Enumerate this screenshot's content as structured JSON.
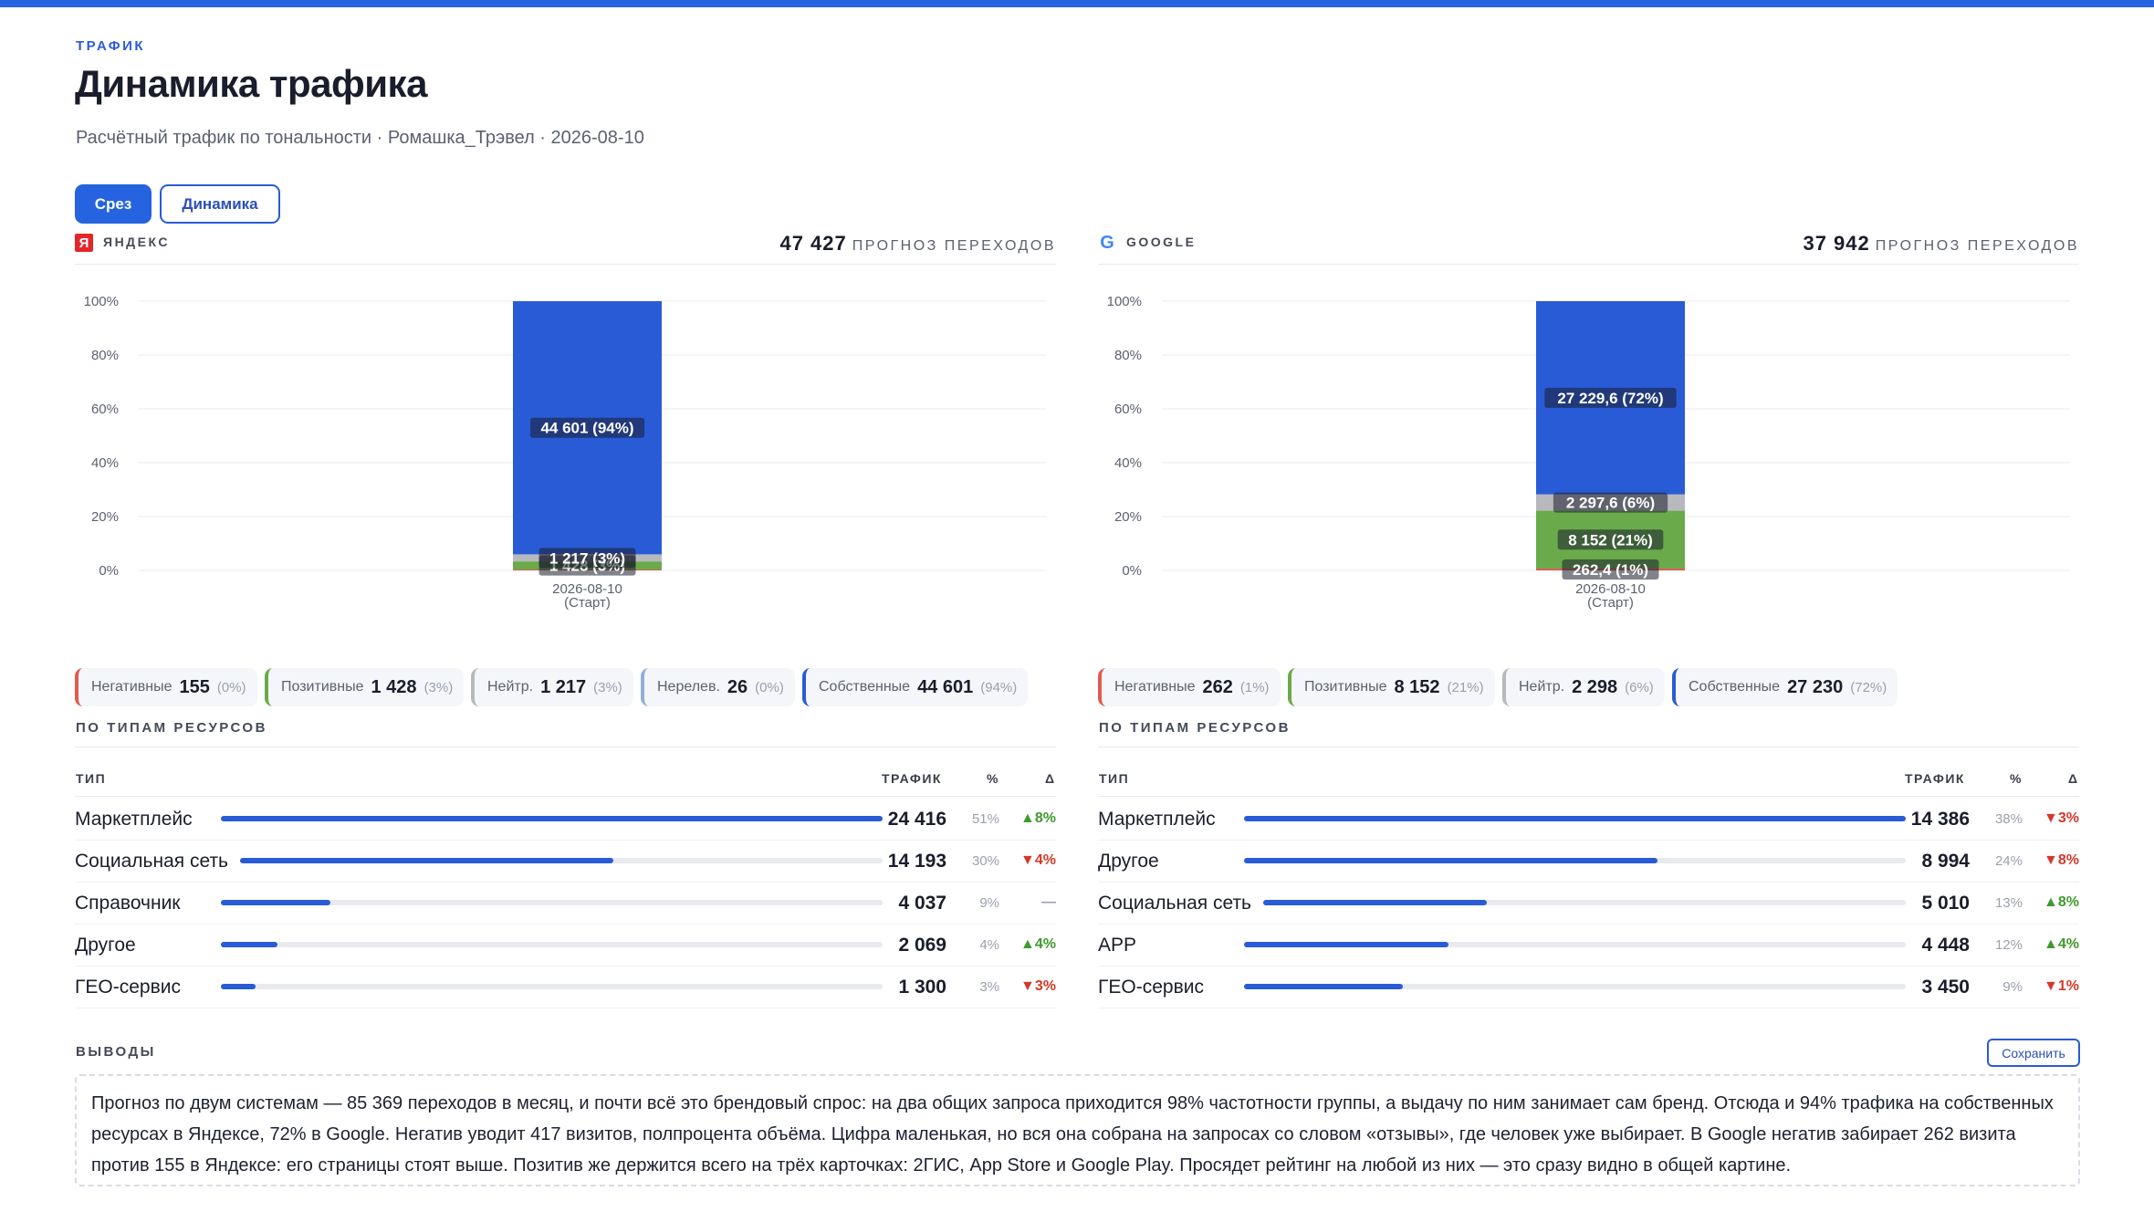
{
  "page": {
    "kicker": "ТРАФИК",
    "title": "Динамика трафика",
    "subtitle": "Расчётный трафик по тональности · Ромашка_Трэвел · 2026-08-10"
  },
  "tabs": {
    "active": "Срез",
    "inactive": "Динамика"
  },
  "colors": {
    "accent": "#2563e0",
    "own": "#2a5bd7",
    "positive": "#6aaa4a",
    "neutral": "#b7b9bd",
    "negative": "#e25b4f",
    "irrelevant": "#8fb0d4"
  },
  "yandex": {
    "logo_letter": "Я",
    "name": "ЯНДЕКС",
    "total": "47 427",
    "total_label": "ПРОГНОЗ ПЕРЕХОДОВ",
    "chips": [
      {
        "label": "Негативные",
        "value": "155",
        "pct": "(0%)",
        "color": "#e25b4f"
      },
      {
        "label": "Позитивные",
        "value": "1 428",
        "pct": "(3%)",
        "color": "#6aaa4a"
      },
      {
        "label": "Нейтр.",
        "value": "1 217",
        "pct": "(3%)",
        "color": "#b7b9bd"
      },
      {
        "label": "Нерелев.",
        "value": "26",
        "pct": "(0%)",
        "color": "#8fb0d4"
      },
      {
        "label": "Собственные",
        "value": "44 601",
        "pct": "(94%)",
        "color": "#2a5bd7"
      }
    ],
    "section": "ПО ТИПАМ РЕСУРСОВ",
    "table": {
      "headers": {
        "type": "ТИП",
        "traffic": "ТРАФИК",
        "pct": "%",
        "delta": "Δ"
      },
      "rows": [
        {
          "name": "Маркетплейс",
          "value": "24 416",
          "pct": "51%",
          "delta": "▲8%",
          "dir": "up",
          "share": 1.0
        },
        {
          "name": "Социальная сеть",
          "value": "14 193",
          "pct": "30%",
          "delta": "▼4%",
          "dir": "down",
          "share": 0.581
        },
        {
          "name": "Справочник",
          "value": "4 037",
          "pct": "9%",
          "delta": "—",
          "dir": "flat",
          "share": 0.165
        },
        {
          "name": "Другое",
          "value": "2 069",
          "pct": "4%",
          "delta": "▲4%",
          "dir": "up",
          "share": 0.085
        },
        {
          "name": "ГЕО-сервис",
          "value": "1 300",
          "pct": "3%",
          "delta": "▼3%",
          "dir": "down",
          "share": 0.053
        }
      ]
    }
  },
  "google": {
    "logo_letter": "G",
    "name": "GOOGLE",
    "total": "37 942",
    "total_label": "ПРОГНОЗ ПЕРЕХОДОВ",
    "chips": [
      {
        "label": "Негативные",
        "value": "262",
        "pct": "(1%)",
        "color": "#e25b4f"
      },
      {
        "label": "Позитивные",
        "value": "8 152",
        "pct": "(21%)",
        "color": "#6aaa4a"
      },
      {
        "label": "Нейтр.",
        "value": "2 298",
        "pct": "(6%)",
        "color": "#b7b9bd"
      },
      {
        "label": "Собственные",
        "value": "27 230",
        "pct": "(72%)",
        "color": "#2a5bd7"
      }
    ],
    "section": "ПО ТИПАМ РЕСУРСОВ",
    "table": {
      "headers": {
        "type": "ТИП",
        "traffic": "ТРАФИК",
        "pct": "%",
        "delta": "Δ"
      },
      "rows": [
        {
          "name": "Маркетплейс",
          "value": "14 386",
          "pct": "38%",
          "delta": "▼3%",
          "dir": "down",
          "share": 1.0
        },
        {
          "name": "Другое",
          "value": "8 994",
          "pct": "24%",
          "delta": "▼8%",
          "dir": "down",
          "share": 0.625
        },
        {
          "name": "Социальная сеть",
          "value": "5 010",
          "pct": "13%",
          "delta": "▲8%",
          "dir": "up",
          "share": 0.348
        },
        {
          "name": "APP",
          "value": "4 448",
          "pct": "12%",
          "delta": "▲4%",
          "dir": "up",
          "share": 0.309
        },
        {
          "name": "ГЕО-сервис",
          "value": "3 450",
          "pct": "9%",
          "delta": "▼1%",
          "dir": "down",
          "share": 0.24
        }
      ]
    }
  },
  "chart_data": [
    {
      "type": "bar",
      "stacked": true,
      "categories": [
        "2026-08-10 (Старт)"
      ],
      "y_ticks": [
        "0%",
        "20%",
        "40%",
        "60%",
        "80%",
        "100%"
      ],
      "ylim": [
        0,
        100
      ],
      "series": [
        {
          "name": "Негативные",
          "values": [
            0.33
          ],
          "color": "#e25b4f",
          "label": ""
        },
        {
          "name": "Позитивные",
          "values": [
            3.01
          ],
          "color": "#6aaa4a",
          "label": "1 428 (3%)"
        },
        {
          "name": "Нейтр.",
          "values": [
            2.57
          ],
          "color": "#b7b9bd",
          "label": "1 217 (3%)"
        },
        {
          "name": "Нерелев.",
          "values": [
            0.05
          ],
          "color": "#8fb0d4",
          "label": ""
        },
        {
          "name": "Собственные",
          "values": [
            94.04
          ],
          "color": "#2a5bd7",
          "label": "44 601 (94%)"
        }
      ]
    },
    {
      "type": "bar",
      "stacked": true,
      "categories": [
        "2026-08-10 (Старт)"
      ],
      "y_ticks": [
        "0%",
        "20%",
        "40%",
        "60%",
        "80%",
        "100%"
      ],
      "ylim": [
        0,
        100
      ],
      "series": [
        {
          "name": "Негативные",
          "values": [
            0.69
          ],
          "color": "#e25b4f",
          "label": "262,4 (1%)"
        },
        {
          "name": "Позитивные",
          "values": [
            21.49
          ],
          "color": "#6aaa4a",
          "label": "8 152 (21%)"
        },
        {
          "name": "Нейтр.",
          "values": [
            6.06
          ],
          "color": "#b7b9bd",
          "label": "2 297,6 (6%)"
        },
        {
          "name": "Собственные",
          "values": [
            71.77
          ],
          "color": "#2a5bd7",
          "label": "27 229,6 (72%)"
        }
      ]
    }
  ],
  "conclusions": {
    "title": "ВЫВОДЫ",
    "save_label": "Сохранить",
    "text": "Прогноз по двум системам — 85 369 переходов в месяц, и почти всё это брендовый спрос: на два общих запроса приходится 98% частотности группы, а выдачу по ним занимает сам бренд. Отсюда и 94% трафика на собственных ресурсах в Яндексе, 72% в Google. Негатив уводит 417 визитов, полпроцента объёма. Цифра маленькая, но вся она собрана на запросах со словом «отзывы», где человек уже выбирает. В Google негатив забирает 262 визита против 155 в Яндексе: его страницы стоят выше. Позитив же держится всего на трёх карточках: 2ГИС, App Store и Google Play. Просядет рейтинг на любой из них — это сразу видно в общей картине."
  }
}
